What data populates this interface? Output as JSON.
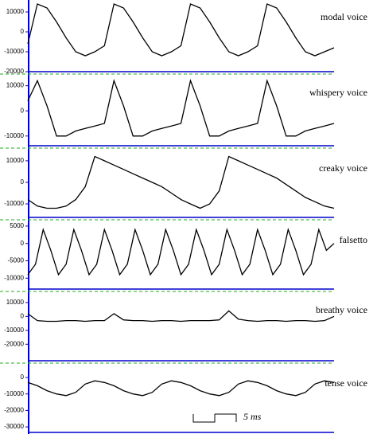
{
  "chart_data": [
    {
      "type": "line",
      "title": "modal voice",
      "color": "#000000",
      "ylim": [
        -20800,
        16000
      ],
      "yticks": [
        10000,
        0,
        -10000,
        -20000
      ],
      "values": [
        -6000,
        14000,
        12000,
        5000,
        -3000,
        -10000,
        -12000,
        -10000,
        -7000,
        14000,
        12000,
        5000,
        -3000,
        -10000,
        -12000,
        -10000,
        -7000,
        14000,
        12000,
        5000,
        -3000,
        -10000,
        -12000,
        -10000,
        -7000,
        14000,
        12000,
        5000,
        -3000,
        -10000,
        -12000,
        -10000,
        -8000
      ]
    },
    {
      "type": "line",
      "title": "whispery voice",
      "color": "#000000",
      "ylim": [
        -14500,
        14000
      ],
      "yticks": [
        10000,
        0,
        -10000
      ],
      "values": [
        4000,
        12000,
        2000,
        -10000,
        -10000,
        -8000,
        -7000,
        -6000,
        -5000,
        12000,
        2000,
        -10000,
        -10000,
        -8000,
        -7000,
        -6000,
        -5000,
        12000,
        2000,
        -10000,
        -10000,
        -8000,
        -7000,
        -6000,
        -5000,
        12000,
        2000,
        -10000,
        -10000,
        -8000,
        -7000,
        -6000,
        -5000
      ]
    },
    {
      "type": "line",
      "title": "creaky voice",
      "color": "#000000",
      "ylim": [
        -17000,
        14400
      ],
      "yticks": [
        10000,
        0,
        -10000
      ],
      "values": [
        -8000,
        -11000,
        -12000,
        -12000,
        -11000,
        -8000,
        -2000,
        12000,
        10000,
        8000,
        6000,
        4000,
        2000,
        0,
        -2000,
        -5000,
        -8000,
        -10000,
        -12000,
        -10000,
        -4000,
        12000,
        10000,
        8000,
        6000,
        4000,
        2000,
        -1000,
        -4000,
        -7000,
        -9000,
        -11000,
        -12000
      ]
    },
    {
      "type": "line",
      "title": "falsetto",
      "color": "#000000",
      "ylim": [
        -13600,
        5900
      ],
      "yticks": [
        5000,
        0,
        -5000,
        -10000
      ],
      "values": [
        -9000,
        -6000,
        4000,
        -2000,
        -9000,
        -6000,
        4000,
        -2000,
        -9000,
        -6000,
        4000,
        -2000,
        -9000,
        -6000,
        4000,
        -2000,
        -9000,
        -6000,
        4000,
        -2000,
        -9000,
        -6000,
        4000,
        -2000,
        -9000,
        -6000,
        4000,
        -2000,
        -9000,
        -6000,
        4000,
        -2000,
        -9000,
        -6000,
        4000,
        -2000,
        -9000,
        -6000,
        4000,
        -2000,
        0
      ]
    },
    {
      "type": "line",
      "title": "breathy voice",
      "color": "#000000",
      "ylim": [
        -33000,
        16800
      ],
      "yticks": [
        10000,
        0,
        -10000,
        -20000
      ],
      "values": [
        2000,
        -3000,
        -3500,
        -3500,
        -3000,
        -3000,
        -3500,
        -3000,
        -3000,
        2000,
        -2500,
        -3000,
        -3000,
        -3500,
        -3000,
        -3000,
        -3500,
        -3000,
        -3000,
        -3000,
        -2500,
        4000,
        -2000,
        -3000,
        -3500,
        -3000,
        -3000,
        -3500,
        -3000,
        -3000,
        -3500,
        -3000,
        0
      ]
    },
    {
      "type": "line",
      "title": "tense voice",
      "color": "#000000",
      "ylim": [
        -34300,
        6800
      ],
      "yticks": [
        0,
        -10000,
        -20000,
        -30000
      ],
      "values": [
        -3000,
        -5000,
        -8000,
        -10000,
        -11000,
        -9000,
        -4000,
        -2000,
        -3000,
        -5000,
        -8000,
        -10000,
        -11000,
        -9000,
        -4000,
        -2000,
        -3000,
        -5000,
        -8000,
        -10000,
        -11000,
        -9000,
        -4000,
        -2000,
        -3000,
        -5000,
        -8000,
        -10000,
        -11000,
        -9000,
        -4000,
        -2000,
        -3000
      ]
    }
  ],
  "scale_label": "5 ms"
}
